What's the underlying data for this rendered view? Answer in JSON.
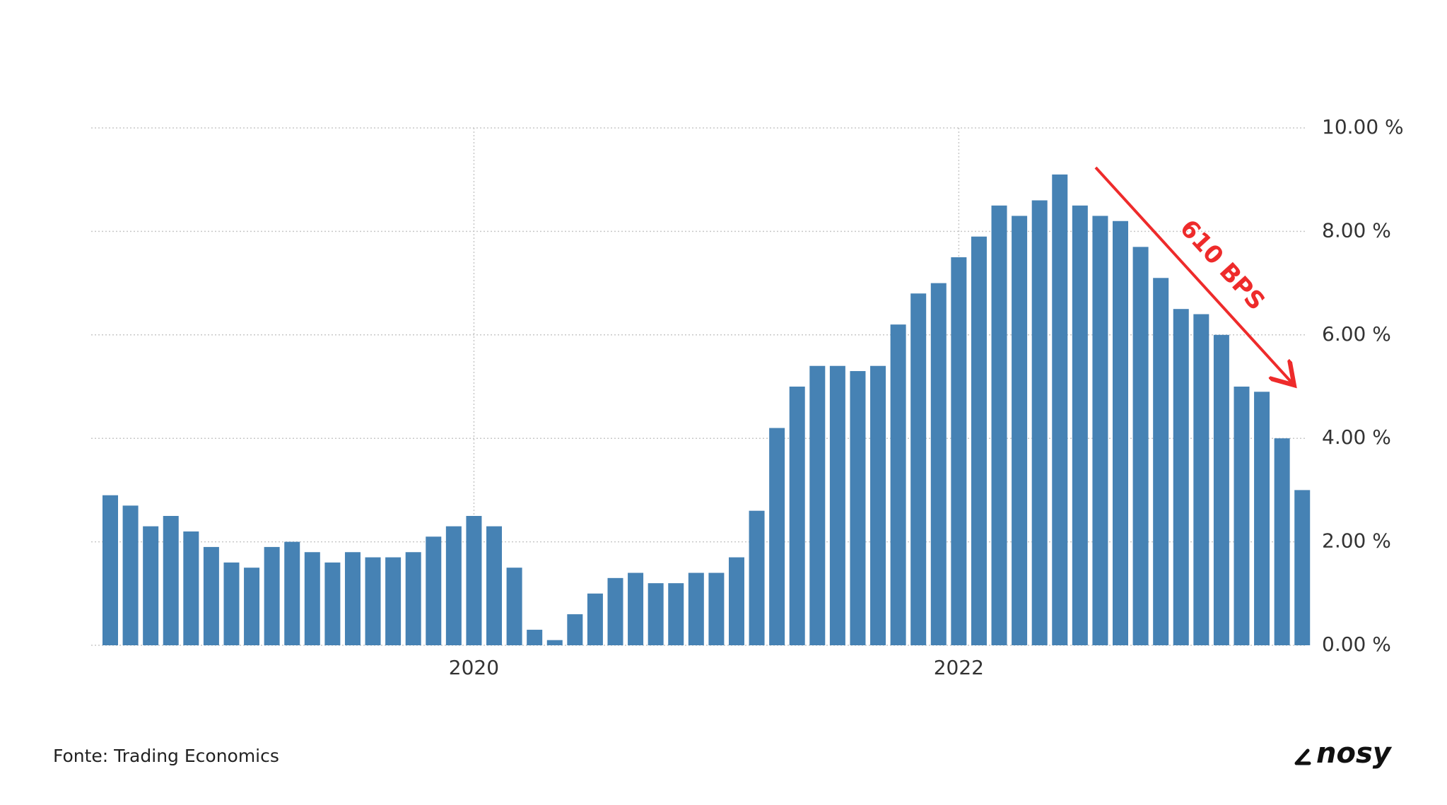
{
  "chart_data": {
    "type": "bar",
    "categories": [
      null,
      null,
      null,
      null,
      null,
      null,
      null,
      null,
      null,
      null,
      null,
      null,
      null,
      null,
      null,
      null,
      null,
      null,
      "2020",
      null,
      null,
      null,
      null,
      null,
      null,
      null,
      null,
      null,
      null,
      null,
      null,
      null,
      null,
      null,
      null,
      null,
      null,
      null,
      null,
      null,
      null,
      null,
      "2022",
      null,
      null,
      null,
      null,
      null,
      null,
      null,
      null,
      null,
      null,
      null,
      null,
      null,
      null,
      null,
      null,
      null
    ],
    "values": [
      2.9,
      2.7,
      2.3,
      2.5,
      2.2,
      1.9,
      1.6,
      1.5,
      1.9,
      2.0,
      1.8,
      1.6,
      1.8,
      1.7,
      1.7,
      1.8,
      2.1,
      2.3,
      2.5,
      2.3,
      1.5,
      0.3,
      0.1,
      0.6,
      1.0,
      1.3,
      1.4,
      1.2,
      1.2,
      1.4,
      1.4,
      1.7,
      2.6,
      4.2,
      5.0,
      5.4,
      5.4,
      5.3,
      5.4,
      6.2,
      6.8,
      7.0,
      7.5,
      7.9,
      8.5,
      8.3,
      8.6,
      9.1,
      8.5,
      8.3,
      8.2,
      7.7,
      7.1,
      6.5,
      6.4,
      6.0,
      5.0,
      4.9,
      4.0,
      3.0
    ],
    "color": "#4682b4",
    "ylim": [
      0,
      10
    ],
    "yticks": [
      {
        "value": 0,
        "label": "0.00 %"
      },
      {
        "value": 2,
        "label": "2.00 %"
      },
      {
        "value": 4,
        "label": "4.00 %"
      },
      {
        "value": 6,
        "label": "6.00 %"
      },
      {
        "value": 8,
        "label": "8.00 %"
      },
      {
        "value": 10,
        "label": "10.00 %"
      }
    ],
    "grid": true,
    "annotation": "610 BPS",
    "annotation_color": "#ee2b2b",
    "source": "Fonte: Trading Economics",
    "logo": "nosy"
  }
}
